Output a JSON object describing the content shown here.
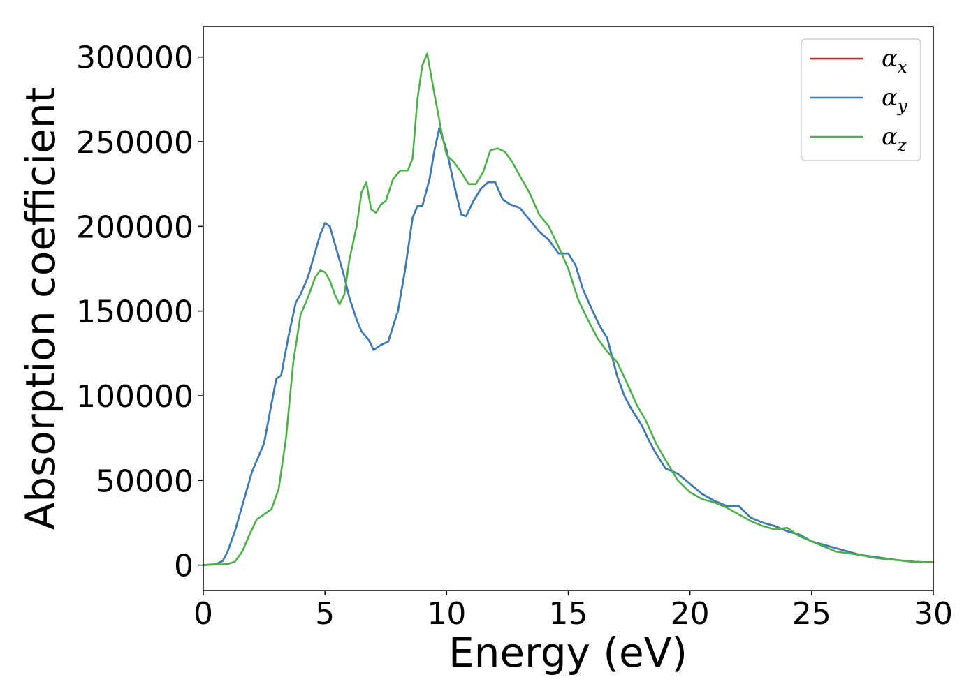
{
  "chart_data": {
    "type": "line",
    "xlabel": "Energy (eV)",
    "ylabel": "Absorption coefficient",
    "xlim": [
      0,
      30
    ],
    "ylim": [
      -15000,
      318000
    ],
    "xticks": [
      0,
      5,
      10,
      15,
      20,
      25,
      30
    ],
    "xtick_labels": [
      "0",
      "5",
      "10",
      "15",
      "20",
      "25",
      "30"
    ],
    "yticks": [
      0,
      50000,
      100000,
      150000,
      200000,
      250000,
      300000
    ],
    "ytick_labels": [
      "0",
      "50000",
      "100000",
      "150000",
      "200000",
      "250000",
      "300000"
    ],
    "grid": false,
    "legend_position": "top-right",
    "series": [
      {
        "name": "α_x",
        "label_main": "α",
        "label_sub": "x",
        "color": "#e41a1c",
        "x": [
          0,
          0.5,
          0.8,
          1.0,
          1.3,
          1.5,
          1.8,
          2.0,
          2.5,
          2.8,
          3.0,
          3.2,
          3.5,
          3.8,
          4.0,
          4.3,
          4.6,
          4.8,
          5.0,
          5.2,
          5.4,
          5.6,
          5.8,
          6.0,
          6.3,
          6.5,
          6.8,
          7.0,
          7.3,
          7.6,
          8.0,
          8.3,
          8.6,
          8.8,
          9.0,
          9.3,
          9.5,
          9.7,
          10.0,
          10.3,
          10.6,
          10.8,
          11.1,
          11.4,
          11.7,
          12.0,
          12.3,
          12.6,
          13.0,
          13.4,
          13.8,
          14.2,
          14.6,
          15.0,
          15.3,
          15.6,
          16.0,
          16.3,
          16.6,
          17.0,
          17.3,
          17.6,
          18.0,
          18.3,
          18.6,
          19.0,
          19.5,
          20.0,
          20.5,
          21.0,
          21.5,
          22.0,
          22.5,
          23.0,
          23.5,
          24.0,
          24.5,
          25.0,
          25.5,
          26.0,
          26.5,
          27.0,
          27.5,
          28.0,
          28.5,
          29.0,
          29.5,
          30.0
        ],
        "y": [
          0,
          500,
          2500,
          8000,
          20000,
          30000,
          45000,
          55000,
          72000,
          95000,
          110000,
          112000,
          135000,
          155000,
          160000,
          170000,
          185000,
          195000,
          202000,
          200000,
          190000,
          180000,
          170000,
          158000,
          145000,
          138000,
          133000,
          127000,
          130000,
          132000,
          150000,
          175000,
          205000,
          212000,
          212000,
          228000,
          245000,
          258000,
          245000,
          225000,
          207000,
          206000,
          215000,
          222000,
          226000,
          226000,
          216000,
          213000,
          211000,
          204000,
          197000,
          192000,
          184000,
          184000,
          177000,
          163000,
          150000,
          141000,
          134000,
          112000,
          100000,
          92000,
          83000,
          74000,
          66000,
          57000,
          54000,
          48000,
          42000,
          38000,
          35000,
          35000,
          28000,
          25000,
          23000,
          20000,
          18000,
          14000,
          12000,
          10000,
          8000,
          6000,
          5000,
          4000,
          3000,
          2200,
          1800,
          1700
        ]
      },
      {
        "name": "α_y",
        "label_main": "α",
        "label_sub": "y",
        "color": "#377eb8",
        "x": [
          0,
          0.5,
          0.8,
          1.0,
          1.3,
          1.5,
          1.8,
          2.0,
          2.5,
          2.8,
          3.0,
          3.2,
          3.5,
          3.8,
          4.0,
          4.3,
          4.6,
          4.8,
          5.0,
          5.2,
          5.4,
          5.6,
          5.8,
          6.0,
          6.3,
          6.5,
          6.8,
          7.0,
          7.3,
          7.6,
          8.0,
          8.3,
          8.6,
          8.8,
          9.0,
          9.3,
          9.5,
          9.7,
          10.0,
          10.3,
          10.6,
          10.8,
          11.1,
          11.4,
          11.7,
          12.0,
          12.3,
          12.6,
          13.0,
          13.4,
          13.8,
          14.2,
          14.6,
          15.0,
          15.3,
          15.6,
          16.0,
          16.3,
          16.6,
          17.0,
          17.3,
          17.6,
          18.0,
          18.3,
          18.6,
          19.0,
          19.5,
          20.0,
          20.5,
          21.0,
          21.5,
          22.0,
          22.5,
          23.0,
          23.5,
          24.0,
          24.5,
          25.0,
          25.5,
          26.0,
          26.5,
          27.0,
          27.5,
          28.0,
          28.5,
          29.0,
          29.5,
          30.0
        ],
        "y": [
          0,
          500,
          2500,
          8000,
          20000,
          30000,
          45000,
          55000,
          72000,
          95000,
          110000,
          112000,
          135000,
          155000,
          160000,
          170000,
          185000,
          195000,
          202000,
          200000,
          190000,
          180000,
          170000,
          158000,
          145000,
          138000,
          133000,
          127000,
          130000,
          132000,
          150000,
          175000,
          205000,
          212000,
          212000,
          228000,
          245000,
          258000,
          245000,
          225000,
          207000,
          206000,
          215000,
          222000,
          226000,
          226000,
          216000,
          213000,
          211000,
          204000,
          197000,
          192000,
          184000,
          184000,
          177000,
          163000,
          150000,
          141000,
          134000,
          112000,
          100000,
          92000,
          83000,
          74000,
          66000,
          57000,
          54000,
          48000,
          42000,
          38000,
          35000,
          35000,
          28000,
          25000,
          23000,
          20000,
          18000,
          14000,
          12000,
          10000,
          8000,
          6000,
          5000,
          4000,
          3000,
          2200,
          1800,
          1700
        ]
      },
      {
        "name": "α_z",
        "label_main": "α",
        "label_sub": "z",
        "color": "#4daf4a",
        "x": [
          0,
          1.0,
          1.3,
          1.6,
          1.9,
          2.2,
          2.5,
          2.8,
          3.1,
          3.4,
          3.7,
          4.0,
          4.3,
          4.6,
          4.8,
          5.0,
          5.2,
          5.4,
          5.6,
          5.8,
          6.0,
          6.3,
          6.5,
          6.7,
          6.9,
          7.1,
          7.3,
          7.5,
          7.8,
          8.1,
          8.4,
          8.6,
          8.8,
          9.0,
          9.2,
          9.5,
          9.8,
          10.0,
          10.3,
          10.6,
          10.9,
          11.2,
          11.5,
          11.8,
          12.1,
          12.4,
          12.7,
          13.0,
          13.4,
          13.8,
          14.2,
          14.6,
          15.0,
          15.4,
          15.8,
          16.2,
          16.6,
          17.0,
          17.4,
          17.8,
          18.2,
          18.6,
          19.0,
          19.5,
          20.0,
          20.5,
          21.0,
          21.5,
          22.0,
          22.5,
          23.0,
          23.5,
          24.0,
          24.5,
          25.0,
          25.5,
          26.0,
          26.5,
          27.0,
          27.5,
          28.0,
          28.5,
          29.0,
          29.5,
          30.0
        ],
        "y": [
          0,
          600,
          2000,
          8000,
          18000,
          27000,
          30000,
          33000,
          45000,
          75000,
          120000,
          148000,
          158000,
          170000,
          174000,
          173000,
          168000,
          160000,
          154000,
          160000,
          180000,
          200000,
          220000,
          226000,
          210000,
          208000,
          213000,
          215000,
          228000,
          233000,
          233000,
          240000,
          275000,
          295000,
          302000,
          278000,
          255000,
          242000,
          238000,
          232000,
          225000,
          225000,
          232000,
          245000,
          246000,
          244000,
          238000,
          230000,
          220000,
          207000,
          200000,
          188000,
          175000,
          157000,
          145000,
          134000,
          126000,
          120000,
          108000,
          95000,
          85000,
          72000,
          62000,
          50000,
          43000,
          39000,
          37000,
          34000,
          30000,
          26000,
          23000,
          21000,
          22000,
          17000,
          14000,
          11000,
          8000,
          7000,
          6000,
          4500,
          3500,
          3000,
          2200,
          1800,
          1700
        ]
      }
    ]
  }
}
